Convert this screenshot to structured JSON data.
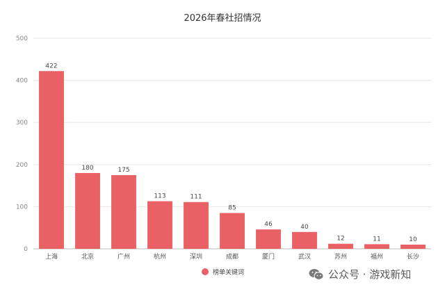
{
  "chart_data": {
    "type": "bar",
    "title": "2026年春社招情况",
    "categories": [
      "上海",
      "北京",
      "广州",
      "杭州",
      "深圳",
      "成都",
      "厦门",
      "武汉",
      "苏州",
      "福州",
      "长沙"
    ],
    "series": [
      {
        "name": "榜单关键词",
        "values": [
          422,
          180,
          175,
          113,
          111,
          85,
          46,
          40,
          12,
          11,
          10
        ]
      }
    ],
    "ylim": [
      0,
      500
    ],
    "yticks": [
      0,
      100,
      200,
      300,
      400,
      500
    ],
    "grid": true,
    "legend_position": "bottom",
    "bar_color": "#e96065"
  },
  "watermark": {
    "text": "公众号 · 游戏新知",
    "icon": "wechat-icon"
  }
}
